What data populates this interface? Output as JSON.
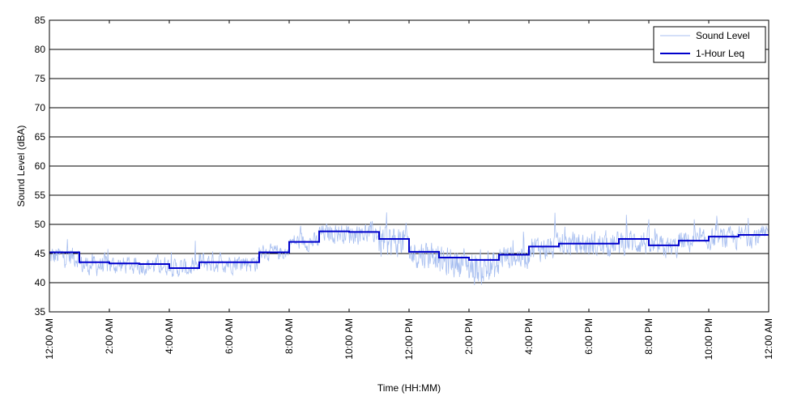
{
  "chart_data": {
    "type": "line",
    "title": "",
    "xlabel": "Time (HH:MM)",
    "ylabel": "Sound Level (dBA)",
    "ylim": [
      35,
      85
    ],
    "xlim": [
      0,
      24
    ],
    "x_unit": "hours since 12:00 AM",
    "y_ticks": [
      35,
      40,
      45,
      50,
      55,
      60,
      65,
      70,
      75,
      80,
      85
    ],
    "x_ticks": [
      {
        "x": 0,
        "label": "12:00 AM"
      },
      {
        "x": 2,
        "label": "2:00 AM"
      },
      {
        "x": 4,
        "label": "4:00 AM"
      },
      {
        "x": 6,
        "label": "6:00 AM"
      },
      {
        "x": 8,
        "label": "8:00 AM"
      },
      {
        "x": 10,
        "label": "10:00 AM"
      },
      {
        "x": 12,
        "label": "12:00 PM"
      },
      {
        "x": 14,
        "label": "2:00 PM"
      },
      {
        "x": 16,
        "label": "4:00 PM"
      },
      {
        "x": 18,
        "label": "6:00 PM"
      },
      {
        "x": 20,
        "label": "8:00 PM"
      },
      {
        "x": 22,
        "label": "10:00 PM"
      },
      {
        "x": 24,
        "label": "12:00 AM"
      }
    ],
    "grid": "horizontal",
    "legend_position": "top-right",
    "series": [
      {
        "name": "Sound Level",
        "color": "#a8bff0",
        "style": "noisy-line",
        "description_x": "hourly mean around which raw readings fluctuate",
        "hourly_center": [
          44.5,
          43.0,
          43.0,
          43.0,
          42.5,
          43.5,
          43.5,
          45.2,
          47.0,
          48.5,
          48.5,
          47.0,
          45.0,
          43.5,
          42.5,
          44.5,
          46.0,
          46.5,
          46.5,
          47.0,
          46.0,
          47.0,
          47.5,
          48.0
        ],
        "hourly_spread": [
          2.5,
          2.5,
          2.2,
          2.2,
          2.2,
          2.5,
          2.3,
          1.8,
          2.0,
          2.2,
          2.5,
          4.0,
          3.5,
          3.5,
          4.0,
          3.0,
          3.0,
          3.0,
          3.0,
          3.0,
          2.8,
          2.5,
          2.5,
          2.5
        ]
      },
      {
        "name": "1-Hour Leq",
        "color": "#0000cc",
        "style": "step",
        "x": [
          0,
          1,
          2,
          3,
          4,
          5,
          6,
          7,
          8,
          9,
          10,
          11,
          12,
          13,
          14,
          15,
          16,
          17,
          18,
          19,
          20,
          21,
          22,
          23
        ],
        "values": [
          45.2,
          43.5,
          43.3,
          43.2,
          42.5,
          43.5,
          43.5,
          45.2,
          47.0,
          48.8,
          48.7,
          47.5,
          45.3,
          44.3,
          43.9,
          44.8,
          46.2,
          46.7,
          46.7,
          47.5,
          46.4,
          47.2,
          47.9,
          48.2
        ]
      }
    ]
  }
}
